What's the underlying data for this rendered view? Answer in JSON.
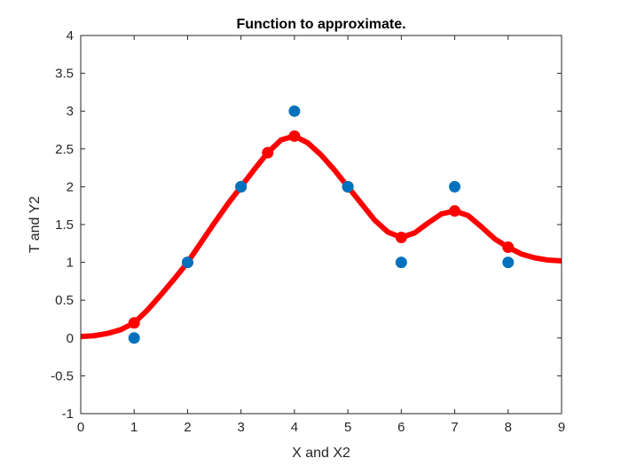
{
  "chart_data": {
    "type": "line",
    "title": "Function to approximate.",
    "xlabel": "X and X2",
    "ylabel": "T and Y2",
    "xlim": [
      0,
      9
    ],
    "ylim": [
      -1,
      4
    ],
    "grid": false,
    "x_ticks": [
      "0",
      "1",
      "2",
      "3",
      "4",
      "5",
      "6",
      "7",
      "8",
      "9"
    ],
    "y_ticks": [
      "-1",
      "-0.5",
      "0",
      "0.5",
      "1",
      "1.5",
      "2",
      "2.5",
      "3",
      "3.5",
      "4"
    ],
    "colors": {
      "targets": "#0072BD",
      "approximation": "#FF0000"
    },
    "series": [
      {
        "style": "scatter",
        "x": [
          1,
          2,
          3,
          4,
          5,
          6,
          7,
          8
        ],
        "y": [
          0,
          1,
          2,
          3,
          2,
          1,
          2,
          1
        ]
      },
      {
        "style": "line",
        "x": [
          0,
          0.25,
          0.5,
          0.75,
          1,
          1.25,
          1.5,
          1.75,
          2,
          2.25,
          2.5,
          2.75,
          3,
          3.25,
          3.5,
          3.75,
          4,
          4.25,
          4.5,
          4.75,
          5,
          5.25,
          5.5,
          5.75,
          6,
          6.25,
          6.5,
          6.75,
          7,
          7.25,
          7.5,
          7.75,
          8,
          8.25,
          8.5,
          8.75,
          9
        ],
        "y": [
          0.02,
          0.03,
          0.06,
          0.11,
          0.2,
          0.37,
          0.57,
          0.78,
          1.0,
          1.26,
          1.52,
          1.77,
          2.0,
          2.23,
          2.45,
          2.62,
          2.67,
          2.58,
          2.42,
          2.22,
          2.0,
          1.78,
          1.56,
          1.4,
          1.33,
          1.39,
          1.52,
          1.64,
          1.68,
          1.62,
          1.47,
          1.31,
          1.2,
          1.11,
          1.06,
          1.03,
          1.02
        ]
      },
      {
        "style": "scatter",
        "x": [
          1,
          2,
          3,
          3.5,
          4,
          5,
          6,
          7,
          8
        ],
        "y": [
          0.2,
          1.0,
          2.0,
          2.45,
          2.67,
          2.0,
          1.33,
          1.68,
          1.2
        ]
      }
    ]
  }
}
